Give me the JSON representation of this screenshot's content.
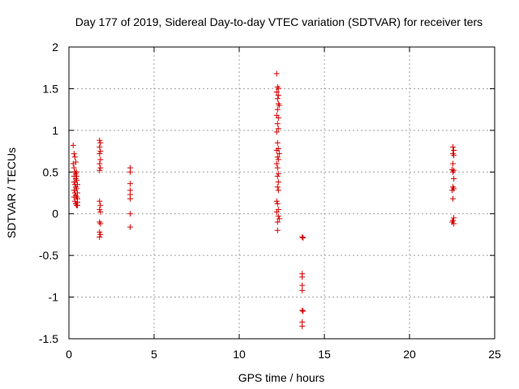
{
  "chart_data": {
    "type": "scatter",
    "title": "Day 177 of 2019, Sidereal Day-to-day VTEC variation (SDTVAR) for receiver ters",
    "xlabel": "GPS time / hours",
    "ylabel": "SDTVAR / TECUs",
    "xlim": [
      0,
      25
    ],
    "ylim": [
      -1.5,
      2
    ],
    "xticks": [
      0,
      5,
      10,
      15,
      20,
      25
    ],
    "xtick_labels": [
      "0",
      "5",
      "10",
      "15",
      "20",
      "25"
    ],
    "yticks": [
      -1.5,
      -1,
      -0.5,
      0,
      0.5,
      1,
      1.5,
      2
    ],
    "ytick_labels": [
      "-1.5",
      "-1",
      "-0.5",
      "0",
      "0.5",
      "1",
      "1.5",
      "2"
    ],
    "grid": true,
    "marker": "+",
    "color": "#d40000",
    "series": [
      {
        "points": [
          [
            0.25,
            0.82
          ],
          [
            0.3,
            0.72
          ],
          [
            0.35,
            0.68
          ],
          [
            0.25,
            0.6
          ],
          [
            0.3,
            0.55
          ],
          [
            0.35,
            0.5
          ],
          [
            0.4,
            0.48
          ],
          [
            0.3,
            0.45
          ],
          [
            0.4,
            0.42
          ],
          [
            0.45,
            0.4
          ],
          [
            0.3,
            0.38
          ],
          [
            0.35,
            0.35
          ],
          [
            0.4,
            0.32
          ],
          [
            0.45,
            0.3
          ],
          [
            0.3,
            0.28
          ],
          [
            0.35,
            0.25
          ],
          [
            0.4,
            0.22
          ],
          [
            0.45,
            0.2
          ],
          [
            0.5,
            0.18
          ],
          [
            0.35,
            0.15
          ],
          [
            0.4,
            0.12
          ],
          [
            0.45,
            0.1
          ],
          [
            0.5,
            0.1
          ],
          [
            0.4,
            0.62
          ],
          [
            0.45,
            0.45
          ],
          [
            0.5,
            0.35
          ],
          [
            0.5,
            0.25
          ],
          [
            0.3,
            0.2
          ],
          [
            0.5,
            0.14
          ],
          [
            0.45,
            0.5
          ],
          [
            1.8,
            0.88
          ],
          [
            1.85,
            0.85
          ],
          [
            1.8,
            0.8
          ],
          [
            1.85,
            0.75
          ],
          [
            1.8,
            0.72
          ],
          [
            1.85,
            0.65
          ],
          [
            1.8,
            0.6
          ],
          [
            1.85,
            0.55
          ],
          [
            1.8,
            0.52
          ],
          [
            1.8,
            0.15
          ],
          [
            1.85,
            0.1
          ],
          [
            1.8,
            0.05
          ],
          [
            1.85,
            0.02
          ],
          [
            1.8,
            -0.1
          ],
          [
            1.85,
            -0.12
          ],
          [
            1.8,
            -0.22
          ],
          [
            1.85,
            -0.25
          ],
          [
            1.8,
            -0.28
          ],
          [
            3.6,
            0.55
          ],
          [
            3.6,
            0.5
          ],
          [
            3.6,
            0.36
          ],
          [
            3.6,
            0.28
          ],
          [
            3.6,
            0.23
          ],
          [
            3.6,
            0.18
          ],
          [
            3.6,
            0.0
          ],
          [
            3.6,
            -0.16
          ],
          [
            12.2,
            1.68
          ],
          [
            12.25,
            1.52
          ],
          [
            12.3,
            1.5
          ],
          [
            12.2,
            1.46
          ],
          [
            12.3,
            1.42
          ],
          [
            12.25,
            1.38
          ],
          [
            12.3,
            1.32
          ],
          [
            12.35,
            1.3
          ],
          [
            12.25,
            1.25
          ],
          [
            12.2,
            1.18
          ],
          [
            12.3,
            1.15
          ],
          [
            12.25,
            1.08
          ],
          [
            12.3,
            1.02
          ],
          [
            12.2,
            0.98
          ],
          [
            12.25,
            0.85
          ],
          [
            12.3,
            0.78
          ],
          [
            12.2,
            0.76
          ],
          [
            12.35,
            0.72
          ],
          [
            12.25,
            0.68
          ],
          [
            12.3,
            0.65
          ],
          [
            12.2,
            0.6
          ],
          [
            12.25,
            0.55
          ],
          [
            12.3,
            0.48
          ],
          [
            12.25,
            0.45
          ],
          [
            12.3,
            0.38
          ],
          [
            12.25,
            0.32
          ],
          [
            12.3,
            0.28
          ],
          [
            12.2,
            0.15
          ],
          [
            12.25,
            0.12
          ],
          [
            12.3,
            0.05
          ],
          [
            12.2,
            0.02
          ],
          [
            12.3,
            -0.03
          ],
          [
            12.35,
            -0.06
          ],
          [
            12.25,
            -0.1
          ],
          [
            12.25,
            -0.2
          ],
          [
            13.7,
            -0.28
          ],
          [
            13.75,
            -0.29
          ],
          [
            13.7,
            -0.72
          ],
          [
            13.7,
            -0.76
          ],
          [
            13.7,
            -0.86
          ],
          [
            13.7,
            -0.92
          ],
          [
            13.7,
            -1.16
          ],
          [
            13.75,
            -1.17
          ],
          [
            13.7,
            -1.3
          ],
          [
            13.7,
            -1.35
          ],
          [
            22.55,
            0.8
          ],
          [
            22.6,
            0.76
          ],
          [
            22.55,
            0.72
          ],
          [
            22.6,
            0.7
          ],
          [
            22.55,
            0.6
          ],
          [
            22.5,
            0.53
          ],
          [
            22.6,
            0.52
          ],
          [
            22.55,
            0.5
          ],
          [
            22.6,
            0.42
          ],
          [
            22.55,
            0.32
          ],
          [
            22.6,
            0.3
          ],
          [
            22.5,
            0.28
          ],
          [
            22.55,
            0.18
          ],
          [
            22.6,
            -0.05
          ],
          [
            22.55,
            -0.08
          ],
          [
            22.5,
            -0.1
          ],
          [
            22.6,
            -0.12
          ]
        ]
      }
    ]
  }
}
